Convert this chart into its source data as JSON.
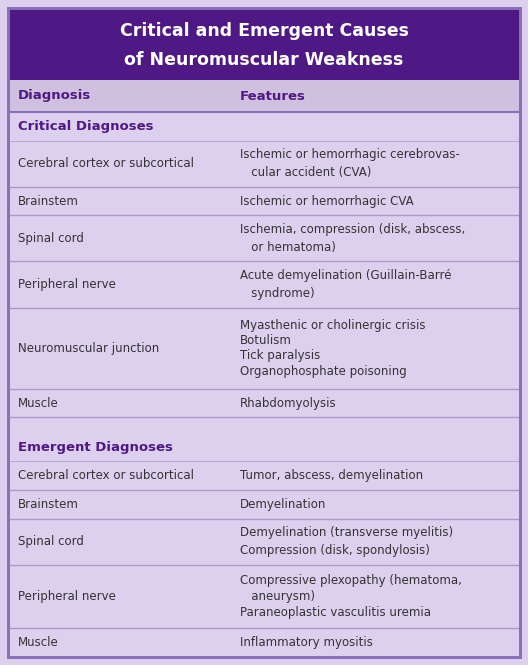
{
  "title_line1": "Critical and Emergent Causes",
  "title_line2": "of Neuromuscular Weakness",
  "title_bg": "#4E1885",
  "title_color": "#FFFFFF",
  "header_bg": "#CFC0DF",
  "header_color": "#4E1885",
  "col1_header": "Diagnosis",
  "col2_header": "Features",
  "body_bg": "#DDD0EE",
  "body_color": "#333333",
  "alt_bg": "#E8DCFA",
  "section_color": "#4E1885",
  "border_color": "#8A70B8",
  "divider_color": "#9980C0",
  "rows": [
    {
      "type": "section",
      "col1": "Critical Diagnoses",
      "col2": "",
      "n_lines": 1
    },
    {
      "type": "data",
      "col1": "Cerebral cortex or subcortical",
      "col2": "Ischemic or hemorrhagic cerebrovas-\n   cular accident (CVA)",
      "n_lines": 2
    },
    {
      "type": "data",
      "col1": "Brainstem",
      "col2": "Ischemic or hemorrhagic CVA",
      "n_lines": 1
    },
    {
      "type": "data",
      "col1": "Spinal cord",
      "col2": "Ischemia, compression (disk, abscess,\n   or hematoma)",
      "n_lines": 2
    },
    {
      "type": "data",
      "col1": "Peripheral nerve",
      "col2": "Acute demyelination (Guillain-Barré\n   syndrome)",
      "n_lines": 2
    },
    {
      "type": "data",
      "col1": "Neuromuscular junction",
      "col2": "Myasthenic or cholinergic crisis\nBotulism\nTick paralysis\nOrganophosphate poisoning",
      "n_lines": 4
    },
    {
      "type": "data",
      "col1": "Muscle",
      "col2": "Rhabdomyolysis",
      "n_lines": 1
    },
    {
      "type": "spacer",
      "col1": "",
      "col2": "",
      "n_lines": 1
    },
    {
      "type": "section",
      "col1": "Emergent Diagnoses",
      "col2": "",
      "n_lines": 1
    },
    {
      "type": "data",
      "col1": "Cerebral cortex or subcortical",
      "col2": "Tumor, abscess, demyelination",
      "n_lines": 1
    },
    {
      "type": "data",
      "col1": "Brainstem",
      "col2": "Demyelination",
      "n_lines": 1
    },
    {
      "type": "data",
      "col1": "Spinal cord",
      "col2": "Demyelination (transverse myelitis)\nCompression (disk, spondylosis)",
      "n_lines": 2
    },
    {
      "type": "data",
      "col1": "Peripheral nerve",
      "col2": "Compressive plexopathy (hematoma,\n   aneurysm)\nParaneoplastic vasculitis uremia",
      "n_lines": 3
    },
    {
      "type": "data",
      "col1": "Muscle",
      "col2": "Inflammatory myositis",
      "n_lines": 1
    }
  ],
  "fig_w": 5.28,
  "fig_h": 6.65,
  "dpi": 100
}
